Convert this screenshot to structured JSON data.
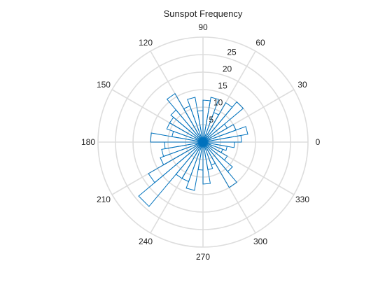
{
  "chart_data": {
    "type": "polar-histogram",
    "title": "Sunspot Frequency",
    "theta_ticks": [
      0,
      30,
      60,
      90,
      120,
      150,
      180,
      210,
      240,
      270,
      300,
      330
    ],
    "theta_tick_labels": [
      "0",
      "30",
      "60",
      "90",
      "120",
      "150",
      "180",
      "210",
      "240",
      "270",
      "300",
      "330"
    ],
    "r_ticks": [
      5,
      10,
      15,
      20,
      25
    ],
    "r_tick_labels": [
      "5",
      "10",
      "15",
      "20",
      "25"
    ],
    "rlim": [
      0,
      30
    ],
    "r_tick_angle_deg": 75,
    "bin_width_deg": 10,
    "bin_start_deg": 0,
    "values": [
      11,
      13,
      10,
      8,
      15,
      13,
      9,
      13,
      12,
      9,
      13,
      11,
      16,
      12,
      11,
      11,
      9,
      15,
      11,
      12,
      13,
      18,
      24,
      12,
      12,
      14,
      8,
      12,
      8,
      7,
      15,
      11,
      8,
      6,
      7,
      9
    ],
    "colors": {
      "bar": "#0072bd",
      "grid": "#dddddd"
    }
  }
}
